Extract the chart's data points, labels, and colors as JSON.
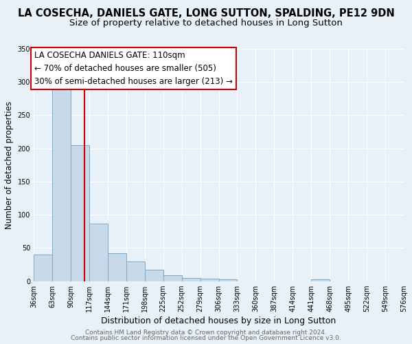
{
  "title": "LA COSECHA, DANIELS GATE, LONG SUTTON, SPALDING, PE12 9DN",
  "subtitle": "Size of property relative to detached houses in Long Sutton",
  "xlabel": "Distribution of detached houses by size in Long Sutton",
  "ylabel": "Number of detached properties",
  "bar_color": "#c8daea",
  "bar_edge_color": "#7aaac8",
  "background_color": "#e8f0f8",
  "grid_color": "#ffffff",
  "bin_edges": [
    36,
    63,
    90,
    117,
    144,
    171,
    198,
    225,
    252,
    279,
    306,
    333,
    360,
    387,
    414,
    441,
    468,
    495,
    522,
    549,
    576
  ],
  "bin_labels": [
    "36sqm",
    "63sqm",
    "90sqm",
    "117sqm",
    "144sqm",
    "171sqm",
    "198sqm",
    "225sqm",
    "252sqm",
    "279sqm",
    "306sqm",
    "333sqm",
    "360sqm",
    "387sqm",
    "414sqm",
    "441sqm",
    "468sqm",
    "495sqm",
    "522sqm",
    "549sqm",
    "576sqm"
  ],
  "bar_heights": [
    40,
    290,
    205,
    87,
    42,
    30,
    17,
    9,
    5,
    4,
    3,
    0,
    0,
    0,
    0,
    3,
    0,
    0,
    0,
    0
  ],
  "ylim": [
    0,
    350
  ],
  "yticks": [
    0,
    50,
    100,
    150,
    200,
    250,
    300,
    350
  ],
  "vline_x": 110,
  "vline_color": "#cc0000",
  "annotation_text_line1": "LA COSECHA DANIELS GATE: 110sqm",
  "annotation_text_line2": "← 70% of detached houses are smaller (505)",
  "annotation_text_line3": "30% of semi-detached houses are larger (213) →",
  "footer_line1": "Contains HM Land Registry data © Crown copyright and database right 2024.",
  "footer_line2": "Contains public sector information licensed under the Open Government Licence v3.0.",
  "title_fontsize": 10.5,
  "subtitle_fontsize": 9.5,
  "xlabel_fontsize": 9,
  "ylabel_fontsize": 8.5,
  "tick_fontsize": 7,
  "annotation_fontsize": 8.5,
  "footer_fontsize": 6.5
}
